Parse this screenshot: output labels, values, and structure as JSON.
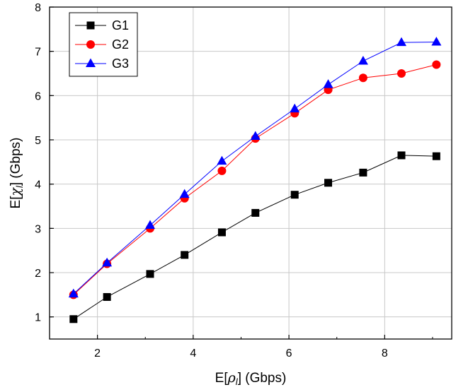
{
  "chart_data": {
    "type": "line",
    "title": "",
    "xlabel": {
      "prefix": "E[",
      "symbol": "ρ",
      "subscript": "l",
      "suffix": "] (Gbps)"
    },
    "ylabel": {
      "prefix": "E[",
      "symbol": "χ",
      "subscript": "l",
      "suffix": "] (Gbps)"
    },
    "xlim": [
      1,
      9.4
    ],
    "ylim": [
      0.5,
      8
    ],
    "xticks": [
      2,
      4,
      6,
      8
    ],
    "yticks": [
      1,
      2,
      3,
      4,
      5,
      6,
      7,
      8
    ],
    "grid": true,
    "legend_position": "top-left",
    "x": [
      1.5,
      2.2,
      3.1,
      3.82,
      4.6,
      5.3,
      6.12,
      6.82,
      7.55,
      8.35,
      9.08
    ],
    "series": [
      {
        "name": "G1",
        "color": "#000000",
        "marker": "square",
        "values": [
          0.95,
          1.45,
          1.97,
          2.4,
          2.91,
          3.35,
          3.76,
          4.03,
          4.26,
          4.65,
          4.63
        ]
      },
      {
        "name": "G2",
        "color": "#ff0000",
        "marker": "circle",
        "values": [
          1.5,
          2.2,
          3.0,
          3.68,
          4.3,
          5.03,
          5.6,
          6.13,
          6.4,
          6.5,
          6.7
        ]
      },
      {
        "name": "G3",
        "color": "#0000ff",
        "marker": "triangle",
        "values": [
          1.52,
          2.22,
          3.07,
          3.77,
          4.52,
          5.08,
          5.7,
          6.25,
          6.78,
          7.2,
          7.21
        ]
      }
    ]
  }
}
